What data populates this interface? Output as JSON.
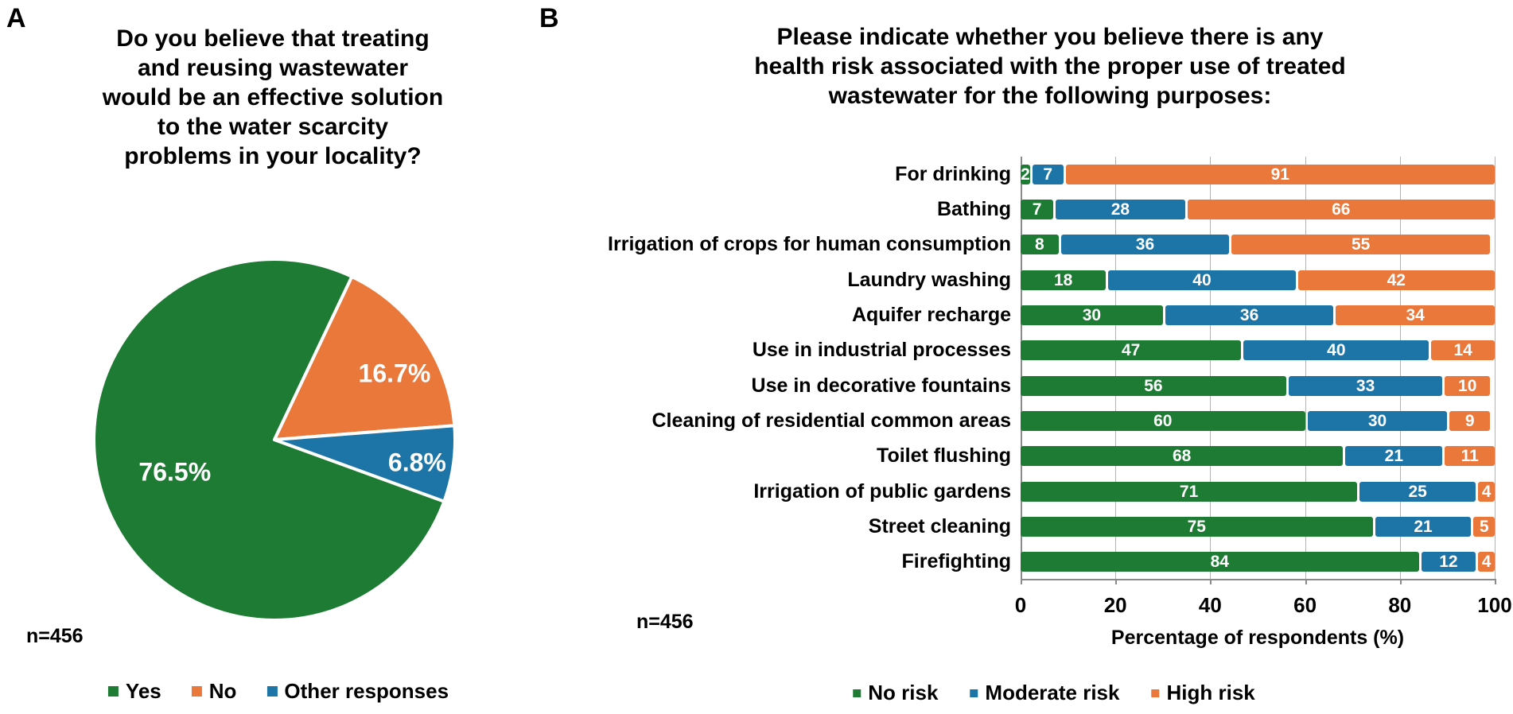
{
  "figure": {
    "background": "#ffffff",
    "text_color": "#000000",
    "gridline_color": "#b3b3b3",
    "axis_color": "#8a8a8a"
  },
  "colors": {
    "green": "#1e7b33",
    "orange": "#e9783a",
    "blue": "#1d74a6"
  },
  "panelA": {
    "letter": "A",
    "title": "Do you believe that treating and reusing wastewater would be an effective solution to the water scarcity problems in your locality?",
    "title_lines": [
      "Do you believe that treating",
      "and reusing wastewater",
      "would be an effective solution",
      "to the water scarcity",
      "problems in your locality?"
    ],
    "n_label": "n=456",
    "legend": [
      {
        "label": "Yes",
        "color": "#1e7b33"
      },
      {
        "label": "No",
        "color": "#e9783a"
      },
      {
        "label": "Other responses",
        "color": "#1d74a6"
      }
    ]
  },
  "panelB": {
    "letter": "B",
    "title": "Please indicate whether you believe there is any health risk associated with the proper use of treated wastewater for the following purposes:",
    "title_lines": [
      "Please indicate whether you believe there is any",
      "health risk associated with the proper use of treated",
      "wastewater for the following purposes:"
    ],
    "n_label": "n=456",
    "xlabel": "Percentage of respondents (%)",
    "legend": [
      {
        "label": "No risk",
        "color": "#1e7b33"
      },
      {
        "label": "Moderate risk",
        "color": "#1d74a6"
      },
      {
        "label": "High risk",
        "color": "#e9783a"
      }
    ]
  },
  "chart_data": [
    {
      "type": "pie",
      "title": "Do you believe that treating and reusing wastewater would be an effective solution to the water scarcity problems in your locality?",
      "n": "n=456",
      "start_angle_deg": -20,
      "direction": "clockwise",
      "slices": [
        {
          "label": "Yes",
          "value": 76.5,
          "display": "76.5%",
          "color": "#1e7b33",
          "label_angle_deg": 198,
          "label_r": 0.58
        },
        {
          "label": "No",
          "value": 16.7,
          "display": "16.7%",
          "color": "#e9783a",
          "label_angle_deg": 29,
          "label_r": 0.76
        },
        {
          "label": "Other responses",
          "value": 6.8,
          "display": "6.8%",
          "color": "#1d74a6",
          "label_angle_deg": -9,
          "label_r": 0.8
        }
      ],
      "legend_position": "bottom"
    },
    {
      "type": "bar",
      "orientation": "horizontal-stacked",
      "title": "Please indicate whether you believe there is any health risk associated with the proper use of treated wastewater for the following purposes:",
      "n": "n=456",
      "xlabel": "Percentage of respondents (%)",
      "xlim": [
        0,
        100
      ],
      "xticks": [
        0,
        20,
        40,
        60,
        80,
        100
      ],
      "grid": true,
      "legend_position": "bottom",
      "categories": [
        "For drinking",
        "Bathing",
        "Irrigation of crops for human consumption",
        "Laundry washing",
        "Aquifer recharge",
        "Use in industrial processes",
        "Use in decorative fountains",
        "Cleaning of residential common areas",
        "Toilet flushing",
        "Irrigation of public gardens",
        "Street cleaning",
        "Firefighting"
      ],
      "series": [
        {
          "name": "No risk",
          "color": "#1e7b33",
          "values": [
            2,
            7,
            8,
            18,
            30,
            47,
            56,
            60,
            68,
            71,
            75,
            84
          ]
        },
        {
          "name": "Moderate risk",
          "color": "#1d74a6",
          "values": [
            7,
            28,
            36,
            40,
            36,
            40,
            33,
            30,
            21,
            25,
            21,
            12
          ]
        },
        {
          "name": "High risk",
          "color": "#e9783a",
          "values": [
            91,
            66,
            55,
            42,
            34,
            14,
            10,
            9,
            11,
            4,
            5,
            4
          ]
        }
      ]
    }
  ]
}
